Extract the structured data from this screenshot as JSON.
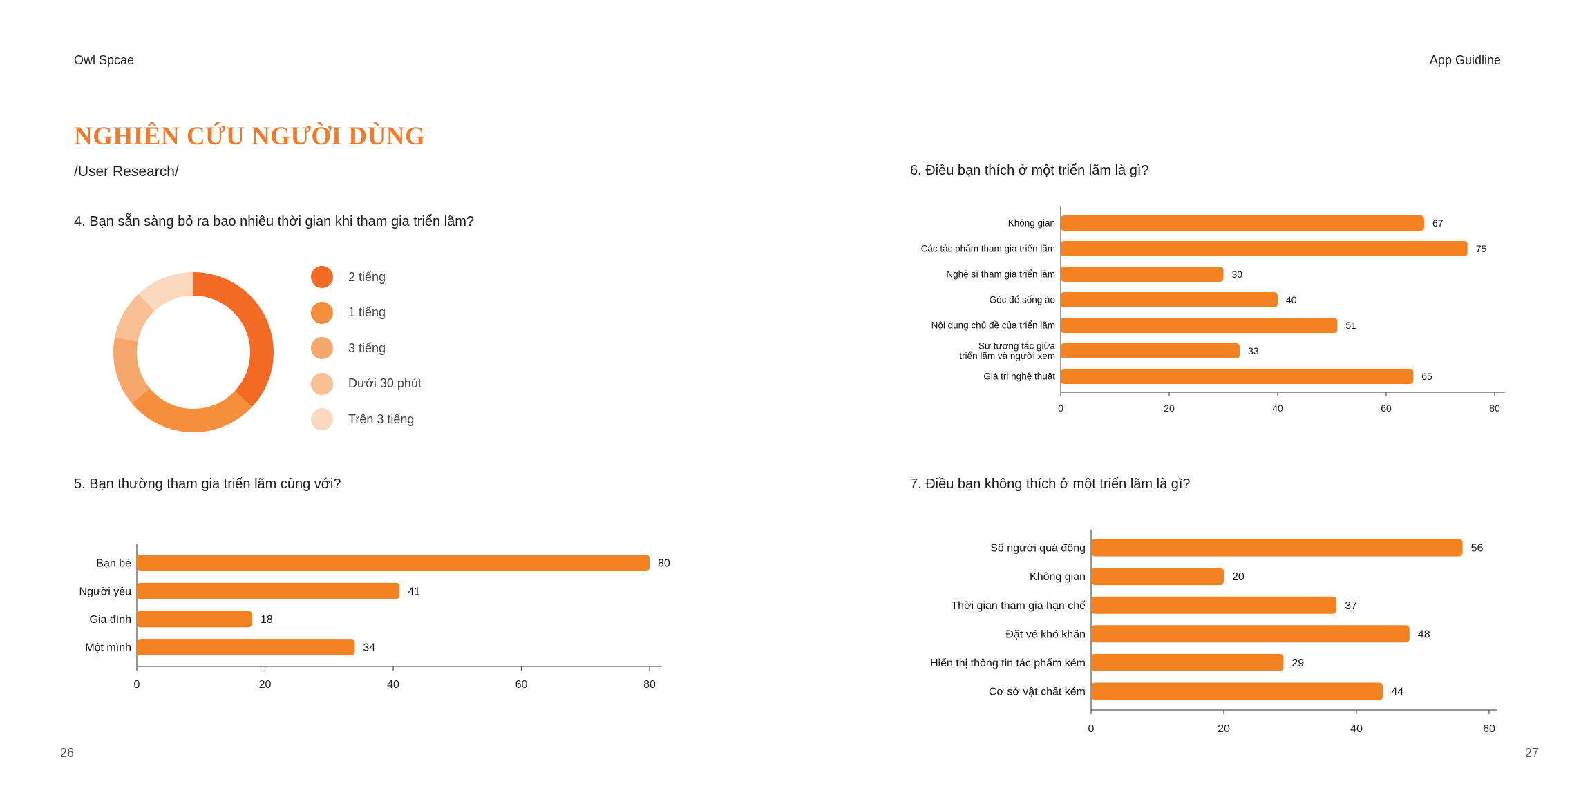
{
  "header": {
    "left": "Owl Spcae",
    "right": "App Guidline"
  },
  "page": {
    "title": "NGHIÊN CỨU NGƯỜI DÙNG",
    "subtitle": "/User Research/",
    "number_left": "26",
    "number_right": "27"
  },
  "questions": {
    "q4": "4. Bạn sẵn sàng bỏ ra bao nhiêu thời gian khi tham gia triển lãm?",
    "q5": "5. Bạn thường tham gia triển lãm cùng với?",
    "q6": "6. Điều bạn thích ở một triển lãm là gì?",
    "q7": "7. Điều bạn không thích ở một triển lãm là gì?"
  },
  "colors": {
    "accent": "#f07a2a",
    "bar": "#f58220",
    "slices": [
      "#f26a24",
      "#f58f3c",
      "#f6a76c",
      "#f8bf95",
      "#fbd9bf"
    ]
  },
  "chart_data": [
    {
      "id": "q4",
      "type": "pie",
      "donut": true,
      "categories": [
        "2 tiếng",
        "1 tiếng",
        "3 tiếng",
        "Dưới 30 phút",
        "Trên 3 tiếng"
      ],
      "values": [
        37,
        27,
        14,
        10,
        12
      ],
      "legend": "right"
    },
    {
      "id": "q5",
      "type": "bar",
      "orientation": "horizontal",
      "categories": [
        "Bạn bè",
        "Người yêu",
        "Gia đình",
        "Một mình"
      ],
      "values": [
        80,
        41,
        18,
        34
      ],
      "xlim": [
        0,
        80
      ],
      "xticks": [
        0,
        20,
        40,
        60,
        80
      ]
    },
    {
      "id": "q6",
      "type": "bar",
      "orientation": "horizontal",
      "categories": [
        "Không gian",
        "Các tác phẩm tham gia triển lãm",
        "Nghệ sĩ tham gia triển lãm",
        "Góc để sống ảo",
        "Nội dung chủ đề của triển lãm",
        "Sự tương tác giữa\ntriển lãm và người xem",
        "Giá trị nghệ thuật"
      ],
      "values": [
        67,
        75,
        30,
        40,
        51,
        33,
        65
      ],
      "xlim": [
        0,
        80
      ],
      "xticks": [
        0,
        20,
        40,
        60,
        80
      ]
    },
    {
      "id": "q7",
      "type": "bar",
      "orientation": "horizontal",
      "categories": [
        "Số người quá đông",
        "Không gian",
        "Thời gian tham gia hạn chế",
        "Đặt vé khó khăn",
        "Hiển thị thông tin tác phẩm kém",
        "Cơ sở vật chất kém"
      ],
      "values": [
        56,
        20,
        37,
        48,
        29,
        44
      ],
      "xlim": [
        0,
        60
      ],
      "xticks": [
        0,
        20,
        40,
        60
      ]
    }
  ]
}
